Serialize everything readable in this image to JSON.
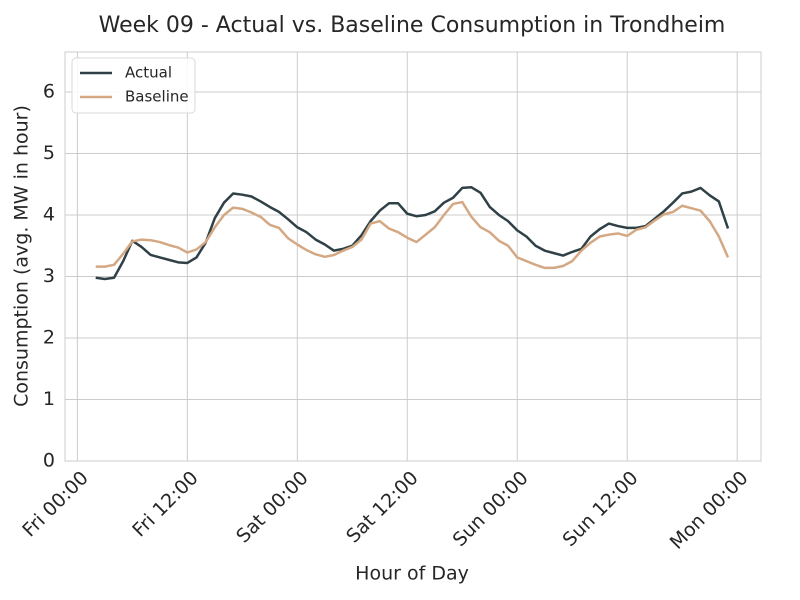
{
  "chart_data": {
    "type": "line",
    "title": "Week 09 - Actual vs. Baseline Consumption in Trondheim",
    "xlabel": "Hour of Day",
    "ylabel": "Consumption (avg. MW in hour)",
    "x": [
      2,
      3,
      4,
      5,
      6,
      7,
      8,
      9,
      10,
      11,
      12,
      13,
      14,
      15,
      16,
      17,
      18,
      19,
      20,
      21,
      22,
      23,
      24,
      25,
      26,
      27,
      28,
      29,
      30,
      31,
      32,
      33,
      34,
      35,
      36,
      37,
      38,
      39,
      40,
      41,
      42,
      43,
      44,
      45,
      46,
      47,
      48,
      49,
      50,
      51,
      52,
      53,
      54,
      55,
      56,
      57,
      58,
      59,
      60,
      61,
      62,
      63,
      64,
      65,
      66,
      67,
      68,
      69,
      70,
      71
    ],
    "series": [
      {
        "name": "Actual",
        "color": "#2f4147",
        "values": [
          2.98,
          2.96,
          2.98,
          3.25,
          3.58,
          3.48,
          3.35,
          3.31,
          3.27,
          3.23,
          3.22,
          3.31,
          3.55,
          3.95,
          4.2,
          4.35,
          4.33,
          4.3,
          4.22,
          4.13,
          4.05,
          3.93,
          3.8,
          3.72,
          3.6,
          3.52,
          3.42,
          3.45,
          3.5,
          3.67,
          3.9,
          4.07,
          4.19,
          4.19,
          4.02,
          3.98,
          4.0,
          4.06,
          4.2,
          4.28,
          4.44,
          4.45,
          4.36,
          4.13,
          4.0,
          3.9,
          3.75,
          3.65,
          3.5,
          3.42,
          3.38,
          3.34,
          3.4,
          3.45,
          3.65,
          3.77,
          3.86,
          3.82,
          3.79,
          3.79,
          3.82,
          3.94,
          4.06,
          4.2,
          4.35,
          4.38,
          4.44,
          4.32,
          4.22,
          3.78
        ]
      },
      {
        "name": "Baseline",
        "color": "#d4a883",
        "values": [
          3.16,
          3.16,
          3.19,
          3.37,
          3.57,
          3.6,
          3.59,
          3.56,
          3.51,
          3.47,
          3.39,
          3.44,
          3.56,
          3.8,
          4.0,
          4.12,
          4.1,
          4.04,
          3.97,
          3.84,
          3.79,
          3.62,
          3.52,
          3.43,
          3.36,
          3.32,
          3.35,
          3.42,
          3.48,
          3.6,
          3.86,
          3.9,
          3.78,
          3.72,
          3.63,
          3.56,
          3.68,
          3.8,
          4.0,
          4.18,
          4.21,
          3.97,
          3.8,
          3.72,
          3.58,
          3.5,
          3.31,
          3.25,
          3.19,
          3.14,
          3.14,
          3.17,
          3.25,
          3.42,
          3.55,
          3.65,
          3.68,
          3.7,
          3.66,
          3.76,
          3.8,
          3.91,
          4.01,
          4.05,
          4.15,
          4.11,
          4.07,
          3.9,
          3.65,
          3.31
        ]
      }
    ],
    "xlim": [
      -1.35,
      74.6
    ],
    "xticks": [
      {
        "value": 0,
        "label": "Fri 00:00"
      },
      {
        "value": 12,
        "label": "Fri 12:00"
      },
      {
        "value": 24,
        "label": "Sat 00:00"
      },
      {
        "value": 36,
        "label": "Sat 12:00"
      },
      {
        "value": 48,
        "label": "Sun 00:00"
      },
      {
        "value": 60,
        "label": "Sun 12:00"
      },
      {
        "value": 72,
        "label": "Mon 00:00"
      }
    ],
    "ylim": [
      0,
      6.65
    ],
    "yticks": [
      0,
      1,
      2,
      3,
      4,
      5,
      6
    ],
    "grid": true,
    "legend": "upper left"
  }
}
